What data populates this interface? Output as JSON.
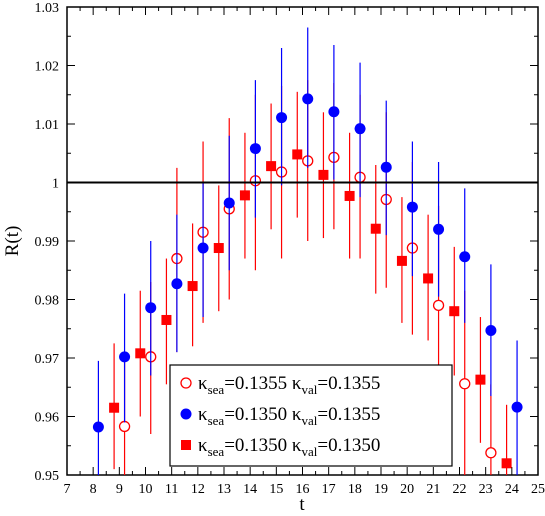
{
  "chart_data": {
    "type": "scatter",
    "xlabel": "t",
    "ylabel": "R(t)",
    "xlim": [
      7,
      25
    ],
    "ylim": [
      0.95,
      1.03
    ],
    "x_ticks": [
      "7",
      "8",
      "9",
      "10",
      "11",
      "12",
      "13",
      "14",
      "15",
      "16",
      "17",
      "18",
      "19",
      "20",
      "21",
      "22",
      "23",
      "24",
      "25"
    ],
    "y_ticks": [
      "0.95",
      "0.96",
      "0.97",
      "0.98",
      "0.99",
      "1",
      "1.01",
      "1.02",
      "1.03"
    ],
    "reference_line": 1.0,
    "grid": false,
    "legend_position": "bottom-right",
    "series": [
      {
        "label_parts": [
          "κ",
          "sea",
          "=0.1355 κ",
          "val",
          "=0.1355"
        ],
        "color": "#ff0000",
        "marker": "open-circle",
        "points": [
          {
            "x": 9.2,
            "y": 0.9583,
            "lo": 0.945,
            "hi": 0.97
          },
          {
            "x": 10.2,
            "y": 0.9702,
            "lo": 0.957,
            "hi": 0.983
          },
          {
            "x": 11.2,
            "y": 0.987,
            "lo": 0.971,
            "hi": 1.0025
          },
          {
            "x": 12.2,
            "y": 0.9915,
            "lo": 0.976,
            "hi": 1.007
          },
          {
            "x": 13.2,
            "y": 0.9955,
            "lo": 0.98,
            "hi": 1.011
          },
          {
            "x": 14.2,
            "y": 1.0003,
            "lo": 0.985,
            "hi": 1.015
          },
          {
            "x": 15.2,
            "y": 1.0018,
            "lo": 0.987,
            "hi": 1.0165
          },
          {
            "x": 16.2,
            "y": 1.0037,
            "lo": 0.99,
            "hi": 1.0175
          },
          {
            "x": 17.2,
            "y": 1.0043,
            "lo": 0.992,
            "hi": 1.017
          },
          {
            "x": 18.2,
            "y": 1.0009,
            "lo": 0.987,
            "hi": 1.015
          },
          {
            "x": 19.2,
            "y": 0.9971,
            "lo": 0.982,
            "hi": 1.012
          },
          {
            "x": 20.2,
            "y": 0.9888,
            "lo": 0.974,
            "hi": 1.0035
          },
          {
            "x": 21.2,
            "y": 0.979,
            "lo": 0.962,
            "hi": 0.996
          },
          {
            "x": 22.2,
            "y": 0.9656,
            "lo": 0.95,
            "hi": 0.9815
          },
          {
            "x": 23.2,
            "y": 0.9538,
            "lo": 0.942,
            "hi": 0.9655
          }
        ]
      },
      {
        "label_parts": [
          "κ",
          "sea",
          "=0.1350 κ",
          "val",
          "=0.1355"
        ],
        "color": "#0000ff",
        "marker": "filled-circle",
        "points": [
          {
            "x": 8.2,
            "y": 0.9582,
            "lo": 0.947,
            "hi": 0.9695
          },
          {
            "x": 9.2,
            "y": 0.9702,
            "lo": 0.959,
            "hi": 0.981
          },
          {
            "x": 10.2,
            "y": 0.9786,
            "lo": 0.967,
            "hi": 0.99
          },
          {
            "x": 11.2,
            "y": 0.9827,
            "lo": 0.971,
            "hi": 0.9945
          },
          {
            "x": 12.2,
            "y": 0.9888,
            "lo": 0.977,
            "hi": 1.0
          },
          {
            "x": 13.2,
            "y": 0.9965,
            "lo": 0.985,
            "hi": 1.008
          },
          {
            "x": 14.2,
            "y": 1.0058,
            "lo": 0.994,
            "hi": 1.0175
          },
          {
            "x": 15.2,
            "y": 1.0111,
            "lo": 0.9995,
            "hi": 1.023
          },
          {
            "x": 16.2,
            "y": 1.0143,
            "lo": 1.0025,
            "hi": 1.0265
          },
          {
            "x": 17.2,
            "y": 1.0121,
            "lo": 1.0005,
            "hi": 1.0235
          },
          {
            "x": 18.2,
            "y": 1.0092,
            "lo": 0.9975,
            "hi": 1.0205
          },
          {
            "x": 19.2,
            "y": 1.0026,
            "lo": 0.991,
            "hi": 1.014
          },
          {
            "x": 20.2,
            "y": 0.9958,
            "lo": 0.984,
            "hi": 1.007
          },
          {
            "x": 21.2,
            "y": 0.992,
            "lo": 0.9805,
            "hi": 1.0035
          },
          {
            "x": 22.2,
            "y": 0.9873,
            "lo": 0.976,
            "hi": 0.999
          },
          {
            "x": 23.2,
            "y": 0.9747,
            "lo": 0.9635,
            "hi": 0.986
          },
          {
            "x": 24.2,
            "y": 0.9616,
            "lo": 0.95,
            "hi": 0.973
          }
        ]
      },
      {
        "label_parts": [
          "κ",
          "sea",
          "=0.1350 κ",
          "val",
          "=0.1350"
        ],
        "color": "#ff0000",
        "marker": "filled-square",
        "points": [
          {
            "x": 8.8,
            "y": 0.9615,
            "lo": 0.951,
            "hi": 0.9725
          },
          {
            "x": 9.8,
            "y": 0.9708,
            "lo": 0.96,
            "hi": 0.9815
          },
          {
            "x": 10.8,
            "y": 0.9765,
            "lo": 0.9655,
            "hi": 0.987
          },
          {
            "x": 11.8,
            "y": 0.9823,
            "lo": 0.972,
            "hi": 0.993
          },
          {
            "x": 12.8,
            "y": 0.9888,
            "lo": 0.978,
            "hi": 0.9995
          },
          {
            "x": 13.8,
            "y": 0.9978,
            "lo": 0.987,
            "hi": 1.0085
          },
          {
            "x": 14.8,
            "y": 1.0028,
            "lo": 0.992,
            "hi": 1.0135
          },
          {
            "x": 15.8,
            "y": 1.0048,
            "lo": 0.994,
            "hi": 1.0155
          },
          {
            "x": 16.8,
            "y": 1.0013,
            "lo": 0.9905,
            "hi": 1.012
          },
          {
            "x": 17.8,
            "y": 0.9977,
            "lo": 0.987,
            "hi": 1.0085
          },
          {
            "x": 18.8,
            "y": 0.9921,
            "lo": 0.981,
            "hi": 1.003
          },
          {
            "x": 19.8,
            "y": 0.9866,
            "lo": 0.976,
            "hi": 0.9975
          },
          {
            "x": 20.8,
            "y": 0.9836,
            "lo": 0.973,
            "hi": 0.9945
          },
          {
            "x": 21.8,
            "y": 0.978,
            "lo": 0.967,
            "hi": 0.989
          },
          {
            "x": 22.8,
            "y": 0.9663,
            "lo": 0.9555,
            "hi": 0.977
          },
          {
            "x": 23.8,
            "y": 0.952,
            "lo": 0.9465,
            "hi": 0.962
          }
        ]
      }
    ]
  }
}
